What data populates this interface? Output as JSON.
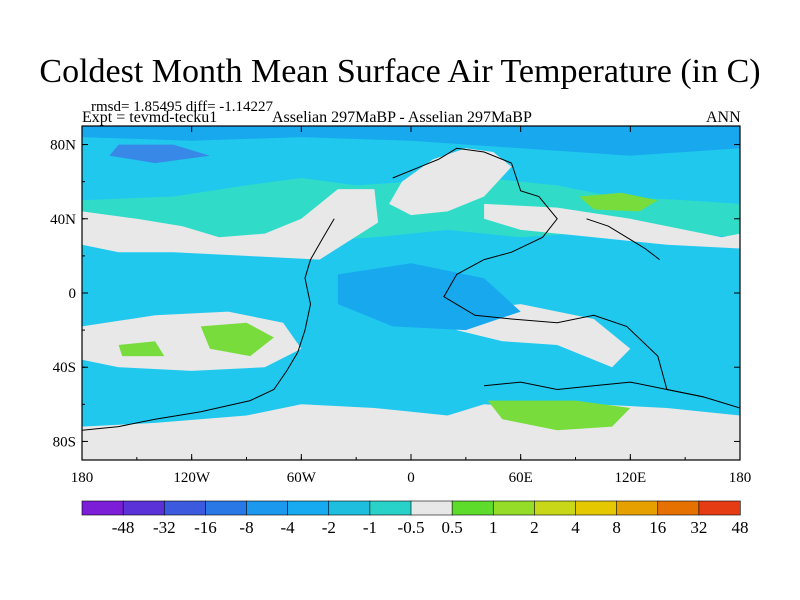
{
  "title": "Coldest Month Mean Surface Air Temperature (in C)",
  "stats_line": "rmsd= 1.85495 diff= -1.14227",
  "experiment_line": "Expt = tevmd-tecku1",
  "comparison_line": "Asselian 297MaBP - Asselian 297MaBP",
  "season_label": "ANN",
  "map": {
    "lat_range": [
      -90,
      90
    ],
    "lon_range": [
      -180,
      180
    ],
    "lat_ticks": [
      {
        "value": 80,
        "label": "80N"
      },
      {
        "value": 40,
        "label": "40N"
      },
      {
        "value": 0,
        "label": "0"
      },
      {
        "value": -40,
        "label": "40S"
      },
      {
        "value": -80,
        "label": "80S"
      }
    ],
    "lon_ticks": [
      {
        "value": -180,
        "label": "180"
      },
      {
        "value": -120,
        "label": "120W"
      },
      {
        "value": -60,
        "label": "60W"
      },
      {
        "value": 0,
        "label": "0"
      },
      {
        "value": 60,
        "label": "60E"
      },
      {
        "value": 120,
        "label": "120E"
      },
      {
        "value": 180,
        "label": "180"
      }
    ],
    "background_color": "#20c8ee",
    "regions": [
      {
        "name": "cold-band-north",
        "color": "#18a8ee",
        "points": [
          [
            -180,
            90
          ],
          [
            180,
            90
          ],
          [
            180,
            78
          ],
          [
            120,
            74
          ],
          [
            60,
            78
          ],
          [
            0,
            82
          ],
          [
            -60,
            84
          ],
          [
            -120,
            82
          ],
          [
            -180,
            84
          ]
        ]
      },
      {
        "name": "deep-cold-north-pacific",
        "color": "#3888e8",
        "points": [
          [
            -160,
            80
          ],
          [
            -130,
            80
          ],
          [
            -110,
            74
          ],
          [
            -140,
            70
          ],
          [
            -165,
            74
          ]
        ]
      },
      {
        "name": "cyan-north-atlantic",
        "color": "#30dcc8",
        "points": [
          [
            -180,
            50
          ],
          [
            -130,
            52
          ],
          [
            -90,
            58
          ],
          [
            -60,
            62
          ],
          [
            -30,
            58
          ],
          [
            0,
            60
          ],
          [
            40,
            62
          ],
          [
            80,
            58
          ],
          [
            110,
            52
          ],
          [
            150,
            50
          ],
          [
            180,
            48
          ],
          [
            180,
            30
          ],
          [
            120,
            34
          ],
          [
            60,
            30
          ],
          [
            20,
            34
          ],
          [
            -20,
            30
          ],
          [
            -80,
            26
          ],
          [
            -140,
            30
          ],
          [
            -180,
            32
          ]
        ]
      },
      {
        "name": "warm-white-north-pacific",
        "color": "#e8e8e8",
        "points": [
          [
            -180,
            44
          ],
          [
            -150,
            40
          ],
          [
            -125,
            36
          ],
          [
            -105,
            30
          ],
          [
            -80,
            32
          ],
          [
            -60,
            40
          ],
          [
            -40,
            56
          ],
          [
            -20,
            56
          ],
          [
            -18,
            38
          ],
          [
            -50,
            18
          ],
          [
            -90,
            20
          ],
          [
            -130,
            22
          ],
          [
            -160,
            22
          ],
          [
            -180,
            26
          ]
        ]
      },
      {
        "name": "warm-white-laurasia",
        "color": "#e8e8e8",
        "points": [
          [
            -5,
            60
          ],
          [
            12,
            72
          ],
          [
            30,
            78
          ],
          [
            45,
            76
          ],
          [
            55,
            68
          ],
          [
            40,
            52
          ],
          [
            20,
            44
          ],
          [
            0,
            42
          ],
          [
            -12,
            48
          ]
        ]
      },
      {
        "name": "warm-white-tethys",
        "color": "#e8e8e8",
        "points": [
          [
            40,
            48
          ],
          [
            80,
            46
          ],
          [
            120,
            40
          ],
          [
            150,
            34
          ],
          [
            170,
            30
          ],
          [
            180,
            32
          ],
          [
            180,
            24
          ],
          [
            140,
            26
          ],
          [
            100,
            30
          ],
          [
            60,
            34
          ],
          [
            40,
            40
          ]
        ]
      },
      {
        "name": "green-east-asia",
        "color": "#78dc3c",
        "points": [
          [
            92,
            52
          ],
          [
            115,
            54
          ],
          [
            135,
            50
          ],
          [
            125,
            44
          ],
          [
            100,
            45
          ]
        ]
      },
      {
        "name": "white-south-pacific",
        "color": "#e8e8e8",
        "points": [
          [
            -180,
            -18
          ],
          [
            -140,
            -12
          ],
          [
            -100,
            -10
          ],
          [
            -70,
            -16
          ],
          [
            -60,
            -30
          ],
          [
            -80,
            -40
          ],
          [
            -120,
            -42
          ],
          [
            -160,
            -40
          ],
          [
            -180,
            -36
          ]
        ]
      },
      {
        "name": "green-south-pacific",
        "color": "#78dc3c",
        "points": [
          [
            -115,
            -18
          ],
          [
            -90,
            -16
          ],
          [
            -75,
            -24
          ],
          [
            -88,
            -34
          ],
          [
            -110,
            -30
          ]
        ]
      },
      {
        "name": "green-small-south",
        "color": "#78dc3c",
        "points": [
          [
            -160,
            -28
          ],
          [
            -140,
            -26
          ],
          [
            -135,
            -34
          ],
          [
            -158,
            -34
          ]
        ]
      },
      {
        "name": "white-south-atlantic",
        "color": "#e8e8e8",
        "points": [
          [
            20,
            -10
          ],
          [
            60,
            -6
          ],
          [
            100,
            -14
          ],
          [
            120,
            -30
          ],
          [
            110,
            -40
          ],
          [
            80,
            -28
          ],
          [
            50,
            -26
          ],
          [
            25,
            -20
          ]
        ]
      },
      {
        "name": "white-gondwana",
        "color": "#e8e8e8",
        "points": [
          [
            -180,
            -72
          ],
          [
            -140,
            -70
          ],
          [
            -90,
            -66
          ],
          [
            -60,
            -60
          ],
          [
            -20,
            -62
          ],
          [
            20,
            -66
          ],
          [
            40,
            -60
          ],
          [
            70,
            -62
          ],
          [
            100,
            -60
          ],
          [
            140,
            -62
          ],
          [
            180,
            -66
          ],
          [
            180,
            -90
          ],
          [
            -180,
            -90
          ]
        ]
      },
      {
        "name": "green-gondwana",
        "color": "#78dc3c",
        "points": [
          [
            42,
            -58
          ],
          [
            90,
            -58
          ],
          [
            120,
            -62
          ],
          [
            110,
            -72
          ],
          [
            80,
            -74
          ],
          [
            50,
            -68
          ]
        ]
      },
      {
        "name": "white-antarctic-lower",
        "color": "#e8e8e8",
        "points": [
          [
            -180,
            -80
          ],
          [
            180,
            -80
          ],
          [
            180,
            -90
          ],
          [
            -180,
            -90
          ]
        ]
      },
      {
        "name": "cold-patch-central",
        "color": "#18a8ee",
        "points": [
          [
            -40,
            10
          ],
          [
            0,
            16
          ],
          [
            40,
            8
          ],
          [
            60,
            -10
          ],
          [
            30,
            -20
          ],
          [
            -10,
            -18
          ],
          [
            -40,
            -6
          ]
        ]
      }
    ],
    "coastlines": [
      {
        "name": "laurasia-west-coast",
        "points": [
          [
            -42,
            40
          ],
          [
            -48,
            30
          ],
          [
            -55,
            18
          ],
          [
            -58,
            8
          ],
          [
            -55,
            -6
          ],
          [
            -58,
            -20
          ],
          [
            -62,
            -32
          ],
          [
            -68,
            -42
          ],
          [
            -75,
            -52
          ],
          [
            -88,
            -58
          ],
          [
            -115,
            -64
          ],
          [
            -140,
            -68
          ],
          [
            -160,
            -72
          ],
          [
            -180,
            -74
          ]
        ]
      },
      {
        "name": "pangea-east-coast",
        "points": [
          [
            15,
            72
          ],
          [
            25,
            78
          ],
          [
            40,
            76
          ],
          [
            55,
            70
          ],
          [
            60,
            55
          ],
          [
            70,
            52
          ],
          [
            80,
            40
          ],
          [
            72,
            30
          ],
          [
            55,
            22
          ],
          [
            40,
            18
          ],
          [
            25,
            10
          ],
          [
            18,
            -2
          ],
          [
            35,
            -12
          ],
          [
            55,
            -14
          ],
          [
            80,
            -16
          ],
          [
            100,
            -12
          ],
          [
            118,
            -18
          ],
          [
            135,
            -34
          ],
          [
            140,
            -52
          ],
          [
            160,
            -56
          ],
          [
            180,
            -62
          ]
        ]
      },
      {
        "name": "north-coast",
        "points": [
          [
            -10,
            62
          ],
          [
            5,
            68
          ],
          [
            15,
            72
          ]
        ]
      },
      {
        "name": "cimmeria",
        "points": [
          [
            96,
            40
          ],
          [
            108,
            36
          ],
          [
            118,
            30
          ],
          [
            128,
            24
          ],
          [
            136,
            18
          ]
        ]
      },
      {
        "name": "south-islands",
        "points": [
          [
            40,
            -50
          ],
          [
            60,
            -48
          ],
          [
            80,
            -52
          ],
          [
            100,
            -50
          ],
          [
            120,
            -48
          ],
          [
            140,
            -52
          ],
          [
            160,
            -56
          ]
        ]
      }
    ]
  },
  "colorbar": {
    "colors": [
      "#7c1ed8",
      "#5a32d8",
      "#3c5ade",
      "#2a78e6",
      "#1c98ee",
      "#18aaf0",
      "#1ebede",
      "#28d2c8",
      "#e8e8e8",
      "#5edc2c",
      "#94dc28",
      "#c8d818",
      "#e6c800",
      "#e6a000",
      "#e67000",
      "#e63c14"
    ],
    "labels": [
      "-48",
      "-32",
      "-16",
      "-8",
      "-4",
      "-2",
      "-1",
      "-0.5",
      "0.5",
      "1",
      "2",
      "4",
      "8",
      "16",
      "32",
      "48"
    ]
  }
}
